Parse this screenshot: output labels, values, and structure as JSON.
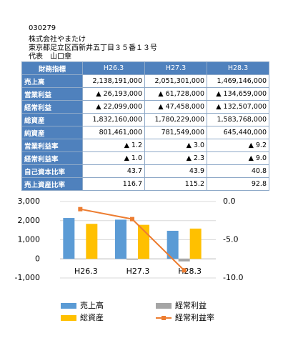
{
  "header": {
    "code": "030279",
    "company": "株式会社やまたけ",
    "address": "東京都足立区西新井五丁目３５番１３号",
    "representative": "代表　山口章"
  },
  "table": {
    "header": [
      "財務指標",
      "H26.3",
      "H27.3",
      "H28.3"
    ],
    "rows": [
      [
        "売上高",
        "2,138,191,000",
        "2,051,301,000",
        "1,469,146,000"
      ],
      [
        "営業利益",
        "▲ 26,193,000",
        "▲ 61,728,000",
        "▲ 134,659,000"
      ],
      [
        "経常利益",
        "▲ 22,099,000",
        "▲ 47,458,000",
        "▲ 132,507,000"
      ],
      [
        "総資産",
        "1,832,160,000",
        "1,780,229,000",
        "1,583,768,000"
      ],
      [
        "純資産",
        "801,461,000",
        "781,549,000",
        "645,440,000"
      ],
      [
        "営業利益率",
        "▲ 1.2",
        "▲ 3.0",
        "▲ 9.2"
      ],
      [
        "経常利益率",
        "▲ 1.0",
        "▲ 2.3",
        "▲ 9.0"
      ],
      [
        "自己資本比率",
        "43.7",
        "43.9",
        "40.8"
      ],
      [
        "売上資産比率",
        "116.7",
        "115.2",
        "92.8"
      ]
    ]
  },
  "chart_data": {
    "type": "bar-line",
    "categories": [
      "H26.3",
      "H27.3",
      "H28.3"
    ],
    "series": [
      {
        "name": "売上高",
        "type": "bar",
        "color": "#5b9bd5",
        "values": [
          2138,
          2051,
          1469
        ]
      },
      {
        "name": "経常利益",
        "type": "bar",
        "color": "#a5a5a5",
        "values": [
          -22,
          -47,
          -133
        ]
      },
      {
        "name": "総資産",
        "type": "bar",
        "color": "#ffc000",
        "values": [
          1832,
          1780,
          1584
        ]
      },
      {
        "name": "経常利益率",
        "type": "line",
        "axis": "y2",
        "color": "#ed7d31",
        "values": [
          -1.0,
          -2.3,
          -9.0
        ]
      }
    ],
    "ylim": [
      -1000,
      3000
    ],
    "yticks": [
      {
        "value": -1000,
        "label": "-1,000"
      },
      0,
      {
        "value": 1000,
        "label": "1,000"
      },
      {
        "value": 2000,
        "label": "2,000"
      },
      {
        "value": 3000,
        "label": "3,000"
      }
    ],
    "y2lim": [
      -10,
      0
    ],
    "y2ticks": [
      {
        "value": -10,
        "label": "-10.0"
      },
      {
        "value": -5,
        "label": "-5.0"
      },
      {
        "value": 0,
        "label": "0.0"
      }
    ],
    "grid": true
  }
}
